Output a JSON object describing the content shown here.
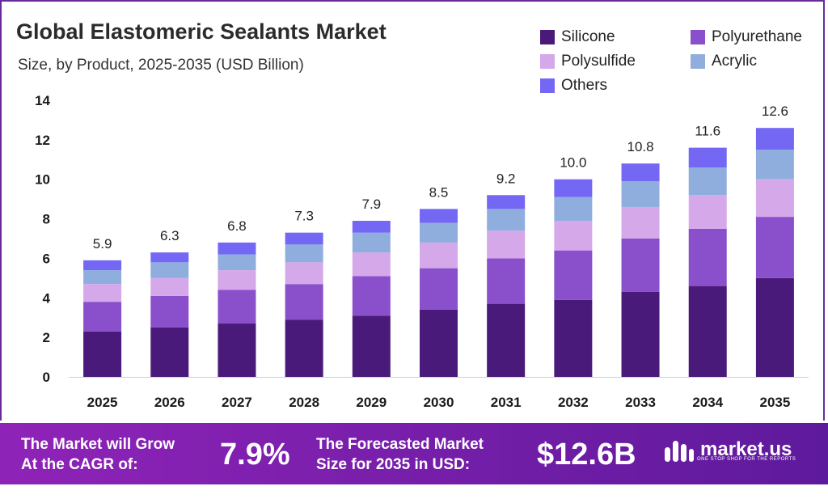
{
  "title": "Global Elastomeric Sealants Market",
  "subtitle": "Size, by Product, 2025-2035 (USD Billion)",
  "colors": {
    "silicone": "#4a1a7a",
    "polyurethane": "#8a4fcb",
    "polysulfide": "#d5a8ea",
    "acrylic": "#8faede",
    "others": "#7467f3"
  },
  "chart_data": {
    "type": "bar",
    "stacked": true,
    "categories": [
      "2025",
      "2026",
      "2027",
      "2028",
      "2029",
      "2030",
      "2031",
      "2032",
      "2033",
      "2034",
      "2035"
    ],
    "ylim": [
      0,
      14
    ],
    "yticks": [
      "0",
      "2",
      "4",
      "6",
      "8",
      "10",
      "12",
      "14"
    ],
    "xlabel": "",
    "ylabel": "",
    "grid": false,
    "legend_position": "top-right",
    "totals": [
      "5.9",
      "6.3",
      "6.8",
      "7.3",
      "7.9",
      "8.5",
      "9.2",
      "10.0",
      "10.8",
      "11.6",
      "12.6"
    ],
    "series": [
      {
        "name": "Silicone",
        "color": "#4a1a7a",
        "values": [
          2.3,
          2.5,
          2.7,
          2.9,
          3.1,
          3.4,
          3.7,
          3.9,
          4.3,
          4.6,
          5.0
        ]
      },
      {
        "name": "Polyurethane",
        "color": "#8a4fcb",
        "values": [
          1.5,
          1.6,
          1.7,
          1.8,
          2.0,
          2.1,
          2.3,
          2.5,
          2.7,
          2.9,
          3.1
        ]
      },
      {
        "name": "Polysulfide",
        "color": "#d5a8ea",
        "values": [
          0.9,
          0.9,
          1.0,
          1.1,
          1.2,
          1.3,
          1.4,
          1.5,
          1.6,
          1.7,
          1.9
        ]
      },
      {
        "name": "Acrylic",
        "color": "#8faede",
        "values": [
          0.7,
          0.8,
          0.8,
          0.9,
          1.0,
          1.0,
          1.1,
          1.2,
          1.3,
          1.4,
          1.5
        ]
      },
      {
        "name": "Others",
        "color": "#7467f3",
        "values": [
          0.5,
          0.5,
          0.6,
          0.6,
          0.6,
          0.7,
          0.7,
          0.9,
          0.9,
          1.0,
          1.1
        ]
      }
    ]
  },
  "banner": {
    "cagr_label_line1": "The Market will Grow",
    "cagr_label_line2": "At the CAGR of:",
    "cagr_value": "7.9%",
    "forecast_label_line1": "The Forecasted Market",
    "forecast_label_line2": "Size for 2035 in USD:",
    "forecast_value": "$12.6B",
    "brand": "market.us",
    "brand_tagline": "ONE STOP SHOP FOR THE REPORTS"
  }
}
